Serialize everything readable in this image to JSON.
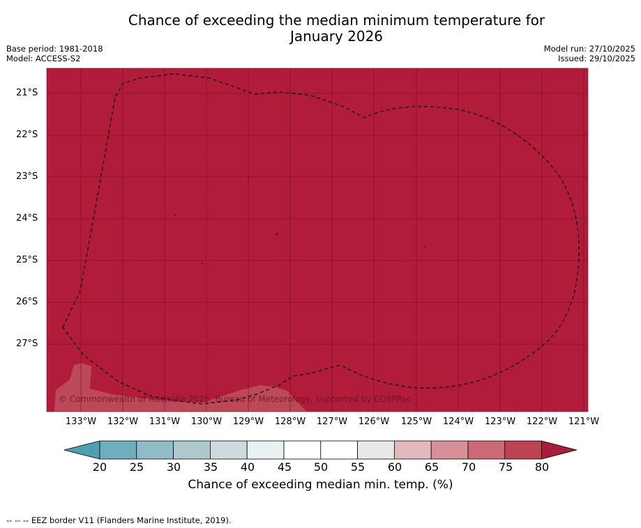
{
  "title": {
    "line1": "Chance of exceeding the median minimum temperature for",
    "line2": "January 2026"
  },
  "meta": {
    "base_period": "Base period: 1981-2018",
    "model": "Model: ACCESS-S2",
    "model_run": "Model run: 27/10/2025",
    "issued": "Issued: 29/10/2025"
  },
  "map": {
    "fill_color": "#b01c3a",
    "land_color": "#c0505e",
    "latitude_labels": [
      "21°S",
      "22°S",
      "23°S",
      "24°S",
      "25°S",
      "26°S",
      "27°S"
    ],
    "longitude_labels": [
      "133°W",
      "132°W",
      "131°W",
      "130°W",
      "129°W",
      "128°W",
      "127°W",
      "126°W",
      "125°W",
      "124°W",
      "123°W",
      "122°W",
      "121°W"
    ],
    "copyright": "© Commonwealth of Australia 2025, Bureau of Meteorology, supported by COSPPac"
  },
  "colorbar": {
    "ticks": [
      "20",
      "25",
      "30",
      "35",
      "40",
      "45",
      "50",
      "55",
      "60",
      "65",
      "70",
      "75",
      "80"
    ],
    "colors": [
      "#4fa0b0",
      "#6eaebd",
      "#8fbcc6",
      "#adc9ce",
      "#cddbdf",
      "#eaf1f3",
      "#ffffff",
      "#ffffff",
      "#e8e8e8",
      "#e2b9bf",
      "#d79097",
      "#cb6a76",
      "#be4352",
      "#a81c3c"
    ],
    "label": "Chance of exceeding median min. temp. (%)"
  },
  "legend_note": "--  --  -- EEZ border V11 (Flanders Marine Institute, 2019)."
}
